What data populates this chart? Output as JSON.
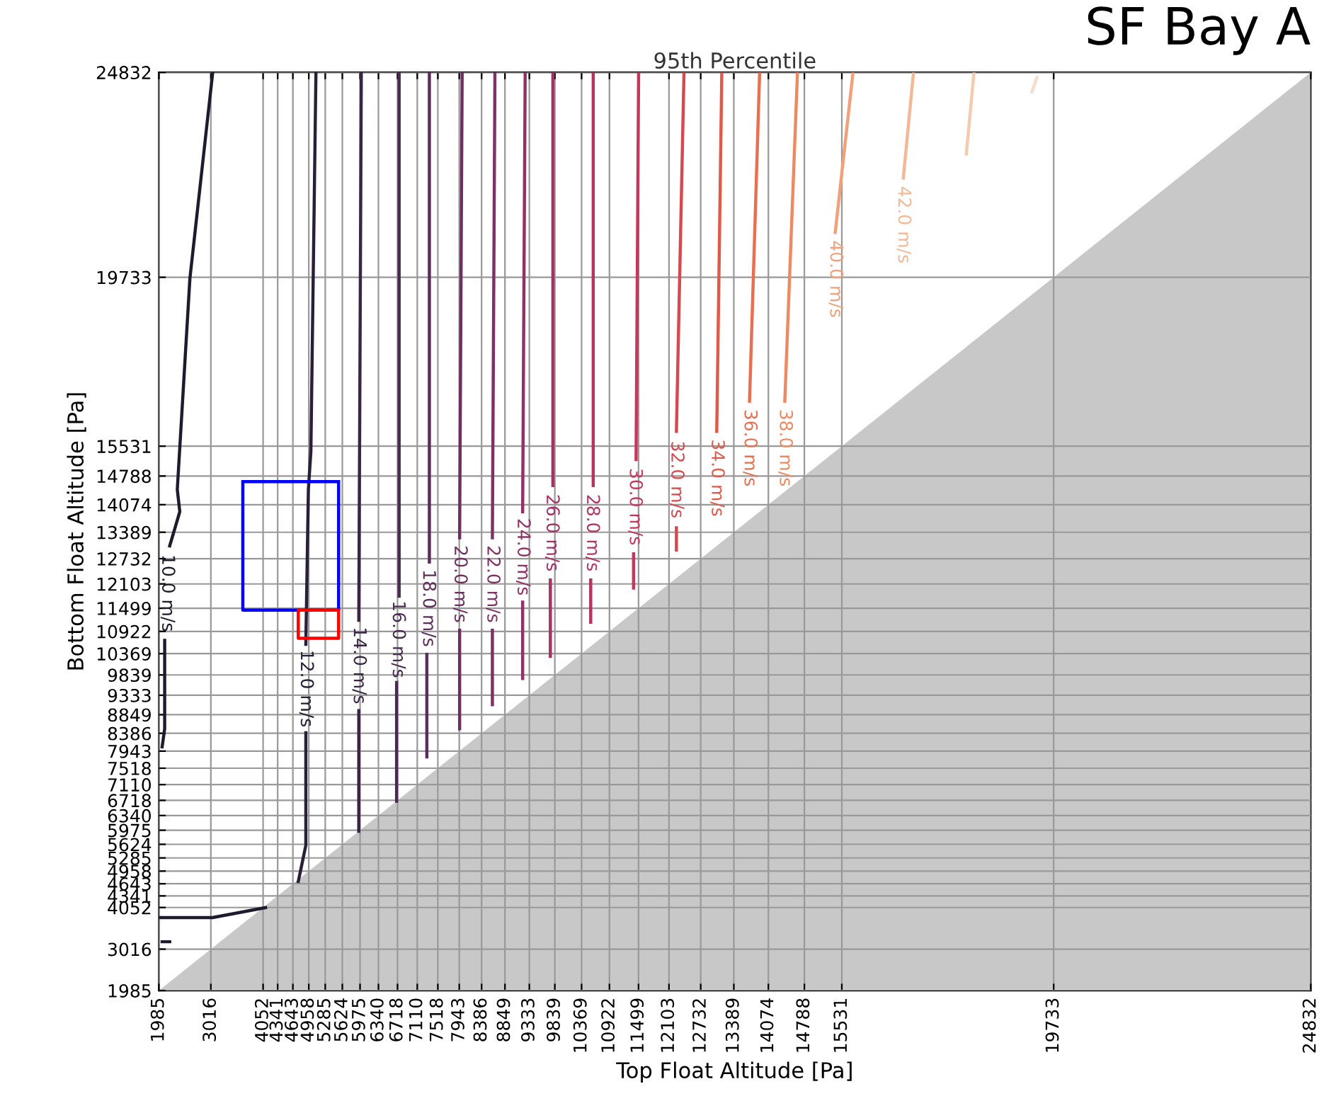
{
  "chart_data": {
    "type": "line",
    "title": "95th Percentile",
    "xlabel": "Top Float Altitude [Pa]",
    "ylabel": "Bottom Float Altitude [Pa]",
    "annotations": [
      "SF Bay A"
    ],
    "xlim": [
      1985,
      24832
    ],
    "ylim": [
      1985,
      24832
    ],
    "xticks": [
      1985,
      3016,
      4052,
      4341,
      4643,
      4958,
      5285,
      5624,
      5975,
      6340,
      6718,
      7110,
      7518,
      7943,
      8386,
      8849,
      9333,
      9839,
      10369,
      10922,
      11499,
      12103,
      12732,
      13389,
      14074,
      14788,
      15531,
      19733,
      24832
    ],
    "yticks": [
      1985,
      3016,
      4052,
      4341,
      4643,
      4958,
      5285,
      5624,
      5975,
      6340,
      6718,
      7110,
      7518,
      7943,
      8386,
      8849,
      9333,
      9839,
      10369,
      10922,
      11499,
      12103,
      12732,
      13389,
      14074,
      14788,
      15531,
      19733,
      24832
    ],
    "grid": true,
    "legend": false,
    "marker": "none",
    "line_style": "solid",
    "series": [
      {
        "type": "area",
        "color": "#c8c8c8",
        "x": [
          1985,
          24832
        ],
        "values": [
          1985,
          24832
        ]
      },
      {
        "name": "10.0 m/s",
        "color": "#1f1a2e",
        "x": [
          3050,
          2600,
          2350,
          2400,
          2200,
          null,
          2100,
          2100,
          2050,
          null,
          2000,
          3050,
          4100
        ],
        "values": [
          24800,
          19700,
          14450,
          13900,
          13050,
          null,
          10700,
          8500,
          8050,
          null,
          3800,
          3800,
          4050
        ]
      },
      {
        "color": "#1f1a2e",
        "x": [
          2050,
          2200
        ],
        "values": [
          3200,
          3200
        ]
      },
      {
        "name": "12.0 m/s",
        "color": "#2a1f38",
        "x": [
          5100,
          5000,
          4950,
          4900,
          null,
          4900,
          4900,
          4800,
          4750
        ],
        "values": [
          24800,
          15400,
          14450,
          10600,
          null,
          8400,
          5600,
          5000,
          4700
        ]
      },
      {
        "name": "14.0 m/s",
        "color": "#3a2544",
        "x": [
          6000,
          5950,
          null,
          5950,
          5950
        ],
        "values": [
          24800,
          11200,
          null,
          8950,
          5950
        ]
      },
      {
        "name": "16.0 m/s",
        "color": "#4a2a50",
        "x": [
          6750,
          6750,
          null,
          6700,
          6700
        ],
        "values": [
          24800,
          11800,
          null,
          9650,
          6700
        ]
      },
      {
        "name": "18.0 m/s",
        "color": "#5c2d5a",
        "x": [
          7350,
          7350,
          null,
          7300,
          7300
        ],
        "values": [
          24800,
          12650,
          null,
          10350,
          7800
        ]
      },
      {
        "name": "20.0 m/s",
        "color": "#6e2f60",
        "x": [
          8000,
          7950,
          null,
          7950,
          7950
        ],
        "values": [
          24800,
          13250,
          null,
          10950,
          8500
        ]
      },
      {
        "name": "22.0 m/s",
        "color": "#7f3064",
        "x": [
          8650,
          8600,
          null,
          8600,
          8600
        ],
        "values": [
          24800,
          13250,
          null,
          10950,
          9100
        ]
      },
      {
        "name": "24.0 m/s",
        "color": "#913166",
        "x": [
          9250,
          9200,
          null,
          9200,
          9200
        ],
        "values": [
          24800,
          13900,
          null,
          11650,
          9750
        ]
      },
      {
        "name": "26.0 m/s",
        "color": "#a33266",
        "x": [
          9800,
          9800,
          null,
          9750,
          9750
        ],
        "values": [
          24800,
          14550,
          null,
          12200,
          10300
        ]
      },
      {
        "name": "28.0 m/s",
        "color": "#b53463",
        "x": [
          10600,
          10600,
          null,
          10550,
          10550
        ],
        "values": [
          24800,
          14550,
          null,
          12200,
          11150
        ]
      },
      {
        "name": "30.0 m/s",
        "color": "#c5385c",
        "x": [
          11500,
          11450,
          null,
          11400,
          11400
        ],
        "values": [
          24800,
          15200,
          null,
          12850,
          12000
        ]
      },
      {
        "name": "32.0 m/s",
        "color": "#d64a4f",
        "x": [
          12400,
          12250,
          null,
          12250,
          12250
        ],
        "values": [
          24800,
          15900,
          null,
          13500,
          12950
        ]
      },
      {
        "name": "34.0 m/s",
        "color": "#e05a4a",
        "x": [
          13150,
          13050
        ],
        "values": [
          24800,
          15900
        ]
      },
      {
        "name": "36.0 m/s",
        "color": "#e87050",
        "x": [
          13900,
          13700
        ],
        "values": [
          24800,
          16650
        ]
      },
      {
        "name": "38.0 m/s",
        "color": "#ee8a62",
        "x": [
          14650,
          14400
        ],
        "values": [
          24800,
          16650
        ]
      },
      {
        "name": "40.0 m/s",
        "color": "#f2a07a",
        "x": [
          15750,
          15400
        ],
        "values": [
          24800,
          20850
        ]
      },
      {
        "name": "42.0 m/s",
        "color": "#f4b896",
        "x": [
          16950,
          16750
        ],
        "values": [
          24800,
          22200
        ]
      },
      {
        "color": "#f5cbb0",
        "x": [
          18150,
          18000
        ],
        "values": [
          24800,
          22800
        ]
      },
      {
        "color": "#f6dccb",
        "x": [
          19400,
          19300
        ],
        "values": [
          24700,
          24350
        ]
      },
      {
        "color": "#0000ff",
        "x": [
          3650,
          3650,
          5550,
          5550,
          null,
          3650,
          5550
        ],
        "values": [
          14650,
          11450,
          11450,
          14650,
          null,
          14650,
          14650
        ]
      },
      {
        "color": "#ff0000",
        "x": [
          4750,
          4750,
          5550,
          5550,
          null,
          4750,
          5550
        ],
        "values": [
          11450,
          10750,
          10750,
          11450,
          null,
          11450,
          11450
        ]
      }
    ]
  }
}
